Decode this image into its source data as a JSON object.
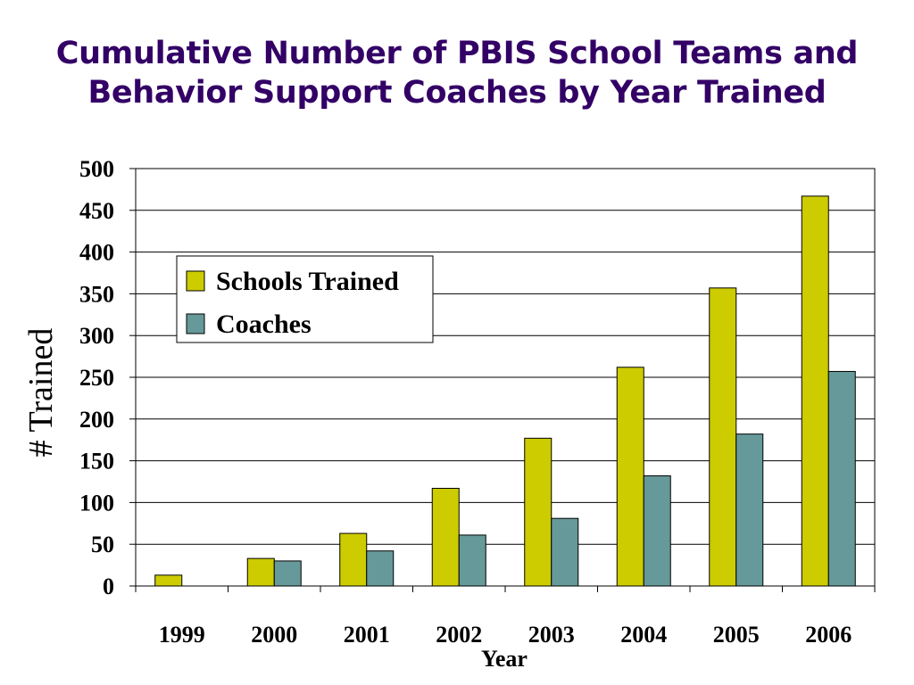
{
  "title_line1": "Cumulative Number of PBIS School Teams and",
  "title_line2": "Behavior Support Coaches by Year Trained",
  "colors": {
    "title": "#330066",
    "schools": "#CCCC00",
    "coaches": "#669999"
  },
  "chart_data": {
    "type": "bar",
    "title": "Cumulative Number of PBIS School Teams and Behavior Support Coaches by Year Trained",
    "xlabel": "Year",
    "ylabel": "# Trained",
    "categories": [
      "1999",
      "2000",
      "2001",
      "2002",
      "2003",
      "2004",
      "2005",
      "2006"
    ],
    "ylim": [
      0,
      500
    ],
    "yticks": [
      0,
      50,
      100,
      150,
      200,
      250,
      300,
      350,
      400,
      450,
      500
    ],
    "grid": true,
    "legend_position": "top-left",
    "series": [
      {
        "name": "Schools Trained",
        "color": "#CCCC00",
        "values": [
          13,
          33,
          63,
          117,
          177,
          262,
          357,
          467
        ]
      },
      {
        "name": "Coaches",
        "color": "#669999",
        "values": [
          0,
          30,
          42,
          61,
          81,
          132,
          182,
          257
        ]
      }
    ]
  }
}
